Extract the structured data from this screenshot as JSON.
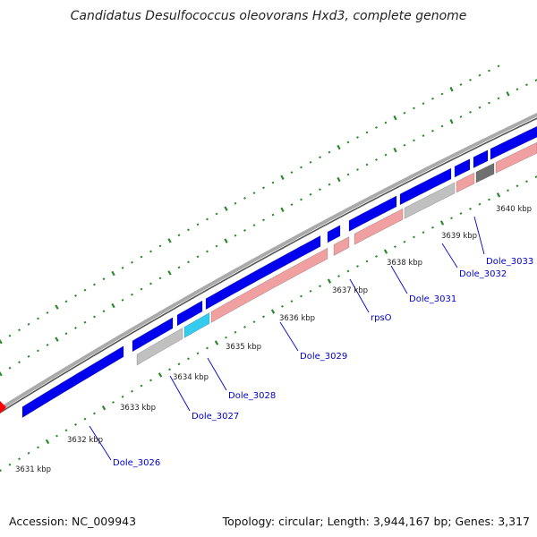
{
  "title": "Candidatus Desulfococcus oleovorans Hxd3, complete genome",
  "footer": {
    "accession": "Accession: NC_009943",
    "summary": "Topology: circular; Length: 3,944,167 bp; Genes: 3,317"
  },
  "colors": {
    "backbone": "#8a8a8a",
    "forward_cds": "#0000ee",
    "reverse_cds": "#f0a0a0",
    "gray_feature": "#c0c0c0",
    "dark_gray_feature": "#707070",
    "cyan_feature": "#33ccee",
    "red_feature": "#ff0000",
    "gc_tick": "#2a8a2a",
    "label_link": "#0000cc"
  },
  "kbp_labels": [
    "3631 kbp",
    "3632 kbp",
    "3633 kbp",
    "3634 kbp",
    "3635 kbp",
    "3636 kbp",
    "3637 kbp",
    "3638 kbp",
    "3639 kbp",
    "3640 kbp"
  ],
  "gene_labels": [
    "Dole_3026",
    "Dole_3027",
    "Dole_3028",
    "Dole_3029",
    "rpsO",
    "Dole_3031",
    "Dole_3032",
    "Dole_3033"
  ]
}
